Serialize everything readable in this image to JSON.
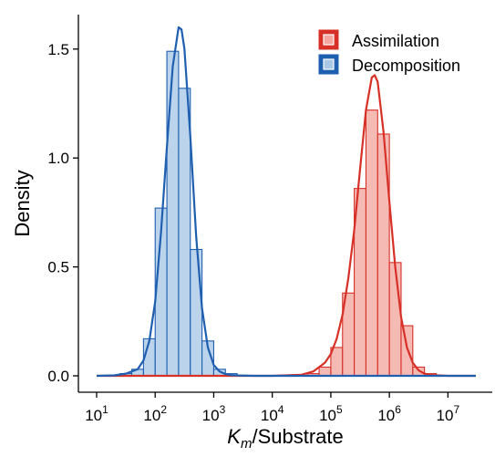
{
  "chart_data": {
    "type": "histogram",
    "x_scale": "log10",
    "xlim": [
      10,
      30000000
    ],
    "ylim": [
      0,
      1.65
    ],
    "xlabel": {
      "symbol": "K",
      "subscript": "m",
      "rest": "/Substrate"
    },
    "ylabel": "Density",
    "x_ticks": [
      {
        "value": 10,
        "base": "10",
        "exp": "1"
      },
      {
        "value": 100,
        "base": "10",
        "exp": "2"
      },
      {
        "value": 1000,
        "base": "10",
        "exp": "3"
      },
      {
        "value": 10000,
        "base": "10",
        "exp": "4"
      },
      {
        "value": 100000,
        "base": "10",
        "exp": "5"
      },
      {
        "value": 1000000,
        "base": "10",
        "exp": "6"
      },
      {
        "value": 10000000,
        "base": "10",
        "exp": "7"
      }
    ],
    "y_ticks": [
      {
        "value": 0.0,
        "label": "0.0"
      },
      {
        "value": 0.5,
        "label": "0.5"
      },
      {
        "value": 1.0,
        "label": "1.0"
      },
      {
        "value": 1.5,
        "label": "1.5"
      }
    ],
    "bin_width_log10": 0.2,
    "legend_position": "top-right",
    "series": [
      {
        "name": "Assimilation",
        "stroke": "#d73027",
        "fill": "#f4a6a0",
        "bins": [
          {
            "x_start": 10,
            "density": 0.0
          },
          {
            "x_start": 15.85,
            "density": 0.0
          },
          {
            "x_start": 25.12,
            "density": 0.0
          },
          {
            "x_start": 39.81,
            "density": 0.0
          },
          {
            "x_start": 63.1,
            "density": 0.0
          },
          {
            "x_start": 100,
            "density": 0.0
          },
          {
            "x_start": 158.5,
            "density": 0.0
          },
          {
            "x_start": 251.2,
            "density": 0.0
          },
          {
            "x_start": 398.1,
            "density": 0.0
          },
          {
            "x_start": 631,
            "density": 0.0
          },
          {
            "x_start": 1000,
            "density": 0.0
          },
          {
            "x_start": 1585,
            "density": 0.0
          },
          {
            "x_start": 2512,
            "density": 0.0
          },
          {
            "x_start": 3981,
            "density": 0.0
          },
          {
            "x_start": 6310,
            "density": 0.0
          },
          {
            "x_start": 10000,
            "density": 0.0
          },
          {
            "x_start": 15850,
            "density": 0.0
          },
          {
            "x_start": 25120,
            "density": 0.0
          },
          {
            "x_start": 39810,
            "density": 0.01
          },
          {
            "x_start": 63100,
            "density": 0.04
          },
          {
            "x_start": 100000,
            "density": 0.13
          },
          {
            "x_start": 158500,
            "density": 0.38
          },
          {
            "x_start": 251200,
            "density": 0.86
          },
          {
            "x_start": 398100,
            "density": 1.22
          },
          {
            "x_start": 631000,
            "density": 1.11
          },
          {
            "x_start": 1000000,
            "density": 0.52
          },
          {
            "x_start": 1585000,
            "density": 0.23
          },
          {
            "x_start": 2512000,
            "density": 0.04
          },
          {
            "x_start": 3981000,
            "density": 0.01
          },
          {
            "x_start": 6310000,
            "density": 0.0
          },
          {
            "x_start": 10000000,
            "density": 0.0
          },
          {
            "x_start": 15850000,
            "density": 0.0
          }
        ],
        "density_curve": {
          "x": [
            10,
            1000,
            10000,
            31620,
            50120,
            79430,
            100000,
            125900,
            158500,
            199500,
            251200,
            316200,
            398100,
            501200,
            562300,
            631000,
            794300,
            1000000,
            1259000,
            1585000,
            1995000,
            2512000,
            3162000,
            3981000,
            5012000,
            10000000,
            30000000
          ],
          "y": [
            0,
            0,
            0,
            0.005,
            0.02,
            0.06,
            0.1,
            0.17,
            0.28,
            0.45,
            0.67,
            0.95,
            1.22,
            1.37,
            1.38,
            1.35,
            1.12,
            0.8,
            0.5,
            0.27,
            0.13,
            0.06,
            0.025,
            0.01,
            0.004,
            0,
            0
          ]
        }
      },
      {
        "name": "Decomposition",
        "stroke": "#1f5fb0",
        "fill": "#a8c8e6",
        "bins": [
          {
            "x_start": 10,
            "density": 0.0
          },
          {
            "x_start": 15.85,
            "density": 0.0
          },
          {
            "x_start": 25.12,
            "density": 0.01
          },
          {
            "x_start": 39.81,
            "density": 0.03
          },
          {
            "x_start": 63.1,
            "density": 0.17
          },
          {
            "x_start": 100,
            "density": 0.77
          },
          {
            "x_start": 158.5,
            "density": 1.49
          },
          {
            "x_start": 251.2,
            "density": 1.32
          },
          {
            "x_start": 398.1,
            "density": 0.58
          },
          {
            "x_start": 631,
            "density": 0.16
          },
          {
            "x_start": 1000,
            "density": 0.03
          },
          {
            "x_start": 1585,
            "density": 0.01
          },
          {
            "x_start": 2512,
            "density": 0.0
          },
          {
            "x_start": 3981,
            "density": 0.0
          },
          {
            "x_start": 6310,
            "density": 0.0
          },
          {
            "x_start": 10000,
            "density": 0.0
          },
          {
            "x_start": 15850,
            "density": 0.0
          },
          {
            "x_start": 25120,
            "density": 0.0
          },
          {
            "x_start": 39810,
            "density": 0.0
          },
          {
            "x_start": 63100,
            "density": 0.0
          },
          {
            "x_start": 100000,
            "density": 0.0
          },
          {
            "x_start": 158500,
            "density": 0.0
          },
          {
            "x_start": 251200,
            "density": 0.0
          },
          {
            "x_start": 398100,
            "density": 0.0
          },
          {
            "x_start": 631000,
            "density": 0.0
          },
          {
            "x_start": 1000000,
            "density": 0.0
          },
          {
            "x_start": 1585000,
            "density": 0.0
          },
          {
            "x_start": 2512000,
            "density": 0.0
          },
          {
            "x_start": 3981000,
            "density": 0.0
          },
          {
            "x_start": 6310000,
            "density": 0.0
          },
          {
            "x_start": 10000000,
            "density": 0.0
          },
          {
            "x_start": 15850000,
            "density": 0.0
          }
        ],
        "density_curve": {
          "x": [
            10,
            20,
            31.6,
            50.1,
            63.1,
            79.4,
            100,
            125.9,
            158.5,
            199.5,
            251.2,
            281.8,
            316.2,
            398.1,
            501.2,
            631,
            794.3,
            1000,
            1259,
            1585,
            1995,
            3162,
            5012,
            10000,
            30000000
          ],
          "y": [
            0,
            0.002,
            0.01,
            0.03,
            0.07,
            0.16,
            0.34,
            0.66,
            1.05,
            1.42,
            1.6,
            1.59,
            1.5,
            1.1,
            0.64,
            0.31,
            0.13,
            0.05,
            0.02,
            0.008,
            0.003,
            0.001,
            0,
            0,
            0
          ]
        }
      }
    ]
  }
}
